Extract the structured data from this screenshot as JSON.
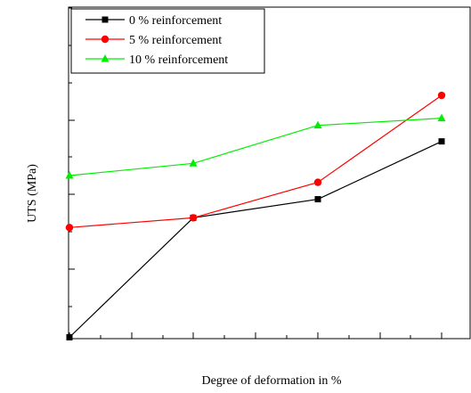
{
  "chart_data": {
    "type": "line",
    "title": "",
    "xlabel": "Degree of deformation in %",
    "ylabel": "UTS (MPa)",
    "x_ticks_labeled": false,
    "y_ticks_labeled": false,
    "grid": false,
    "legend_position": "top-left",
    "x": [
      0,
      1,
      2,
      3
    ],
    "ylim": [
      0,
      8
    ],
    "series": [
      {
        "name": "0 % reinforcement",
        "color": "#000000",
        "marker": "square",
        "values": [
          0.18,
          3.01,
          3.45,
          4.82
        ]
      },
      {
        "name": "5 % reinforcement",
        "color": "#ff0000",
        "marker": "circle",
        "values": [
          2.78,
          3.01,
          3.85,
          5.91
        ]
      },
      {
        "name": "10 % reinforcement",
        "color": "#00ee00",
        "marker": "triangle",
        "values": [
          4.01,
          4.3,
          5.2,
          5.37
        ]
      }
    ]
  }
}
